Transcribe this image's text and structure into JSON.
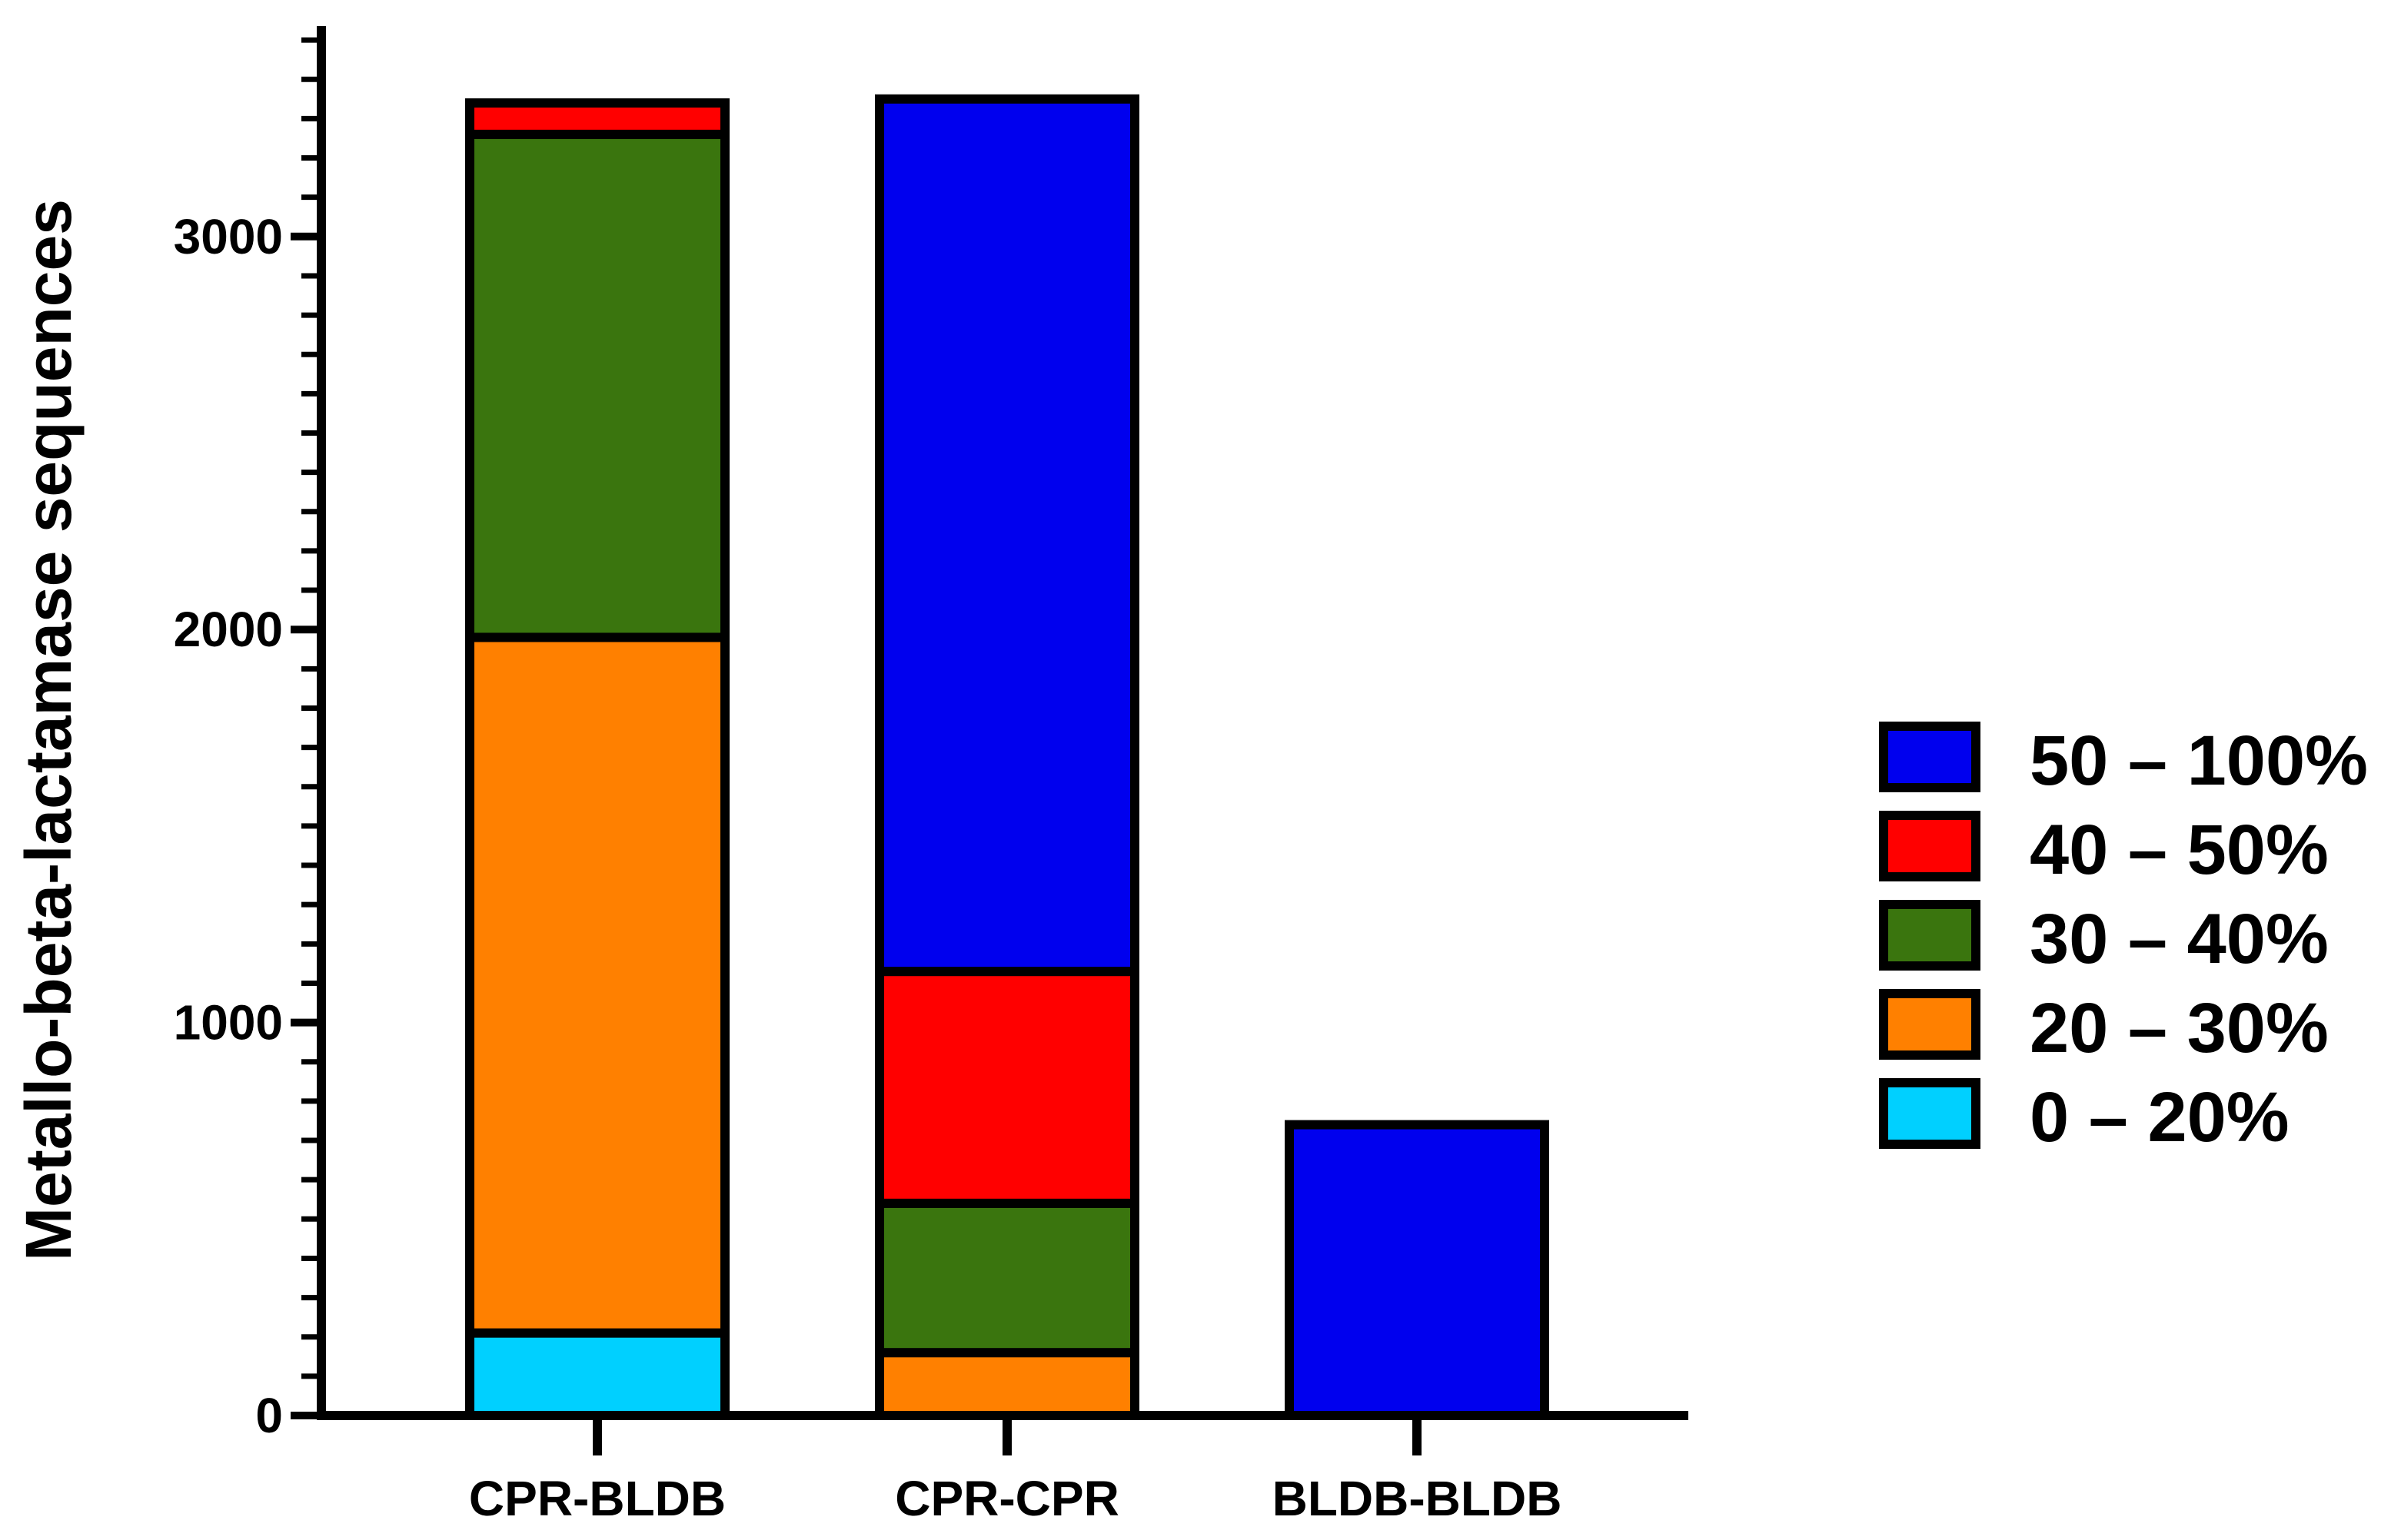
{
  "chart_data": {
    "type": "bar",
    "stacked": true,
    "categories": [
      "CPR-BLDB",
      "CPR-CPR",
      "BLDB-BLDB"
    ],
    "ylabel": "Metallo-beta-lactamase sequences",
    "ylim": [
      0,
      3500
    ],
    "yticks": [
      0,
      1000,
      2000,
      3000
    ],
    "ytick_labels": [
      "0",
      "1000",
      "2000",
      "3000"
    ],
    "minor_tick_step": 100,
    "grid": false,
    "legend_position": "right",
    "series": [
      {
        "name": "0 – 20%",
        "color": "#00D0FF",
        "values": [
          210,
          0,
          0
        ]
      },
      {
        "name": "20 – 30%",
        "color": "#FF8000",
        "values": [
          1770,
          160,
          0
        ]
      },
      {
        "name": "30 – 40%",
        "color": "#3A750E",
        "values": [
          1280,
          380,
          0
        ]
      },
      {
        "name": "40 – 50%",
        "color": "#FF0000",
        "values": [
          80,
          590,
          0
        ]
      },
      {
        "name": "50 – 100%",
        "color": "#0000EE",
        "values": [
          0,
          2220,
          740
        ]
      }
    ]
  }
}
